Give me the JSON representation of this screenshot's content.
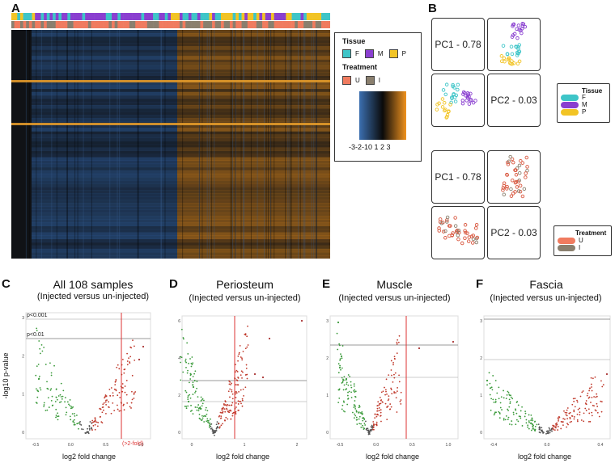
{
  "panels": {
    "A": "A",
    "B": "B",
    "C": "C",
    "D": "D",
    "E": "E",
    "F": "F"
  },
  "heatmap_legend": {
    "tissue_title": "Tissue",
    "tissue_items": [
      {
        "label": "F",
        "color": "#3ec5c8"
      },
      {
        "label": "M",
        "color": "#8a3fd0"
      },
      {
        "label": "P",
        "color": "#f2c425"
      }
    ],
    "treatment_title": "Treatment",
    "treatment_items": [
      {
        "label": "U",
        "color": "#f07b5f"
      },
      {
        "label": "I",
        "color": "#8a7f6e"
      }
    ],
    "scale_labels": "-3-2-10 1 2 3"
  },
  "pca": {
    "pc1_label": "PC1 - 0.78",
    "pc2_label": "PC2 - 0.03",
    "tissue_legend": {
      "title": "Tissue",
      "items": [
        {
          "label": "F",
          "color": "#3ec5c8"
        },
        {
          "label": "M",
          "color": "#8a3fd0"
        },
        {
          "label": "P",
          "color": "#f2c425"
        }
      ]
    },
    "treatment_legend": {
      "title": "Treatment",
      "items": [
        {
          "label": "U",
          "color": "#f07b5f"
        },
        {
          "label": "I",
          "color": "#8a7f6e"
        }
      ]
    }
  },
  "volcano": {
    "C": {
      "title": "All 108 samples",
      "subtitle": "(Injected versus un-injected)"
    },
    "D": {
      "title": "Periosteum",
      "subtitle": "(Injected versus un-injected)"
    },
    "E": {
      "title": "Muscle",
      "subtitle": "(Injected versus un-injected)"
    },
    "F": {
      "title": "Fascia",
      "subtitle": "(Injected versus un-injected)"
    },
    "xlabel": "log2 fold change",
    "ylabel": "-log10 p-value",
    "thresh_001": "p<0.001",
    "thresh_01": "p<0.01",
    "fold_note": "(>2-fold)",
    "c_ticks_x": [
      "-0.5",
      "0.0",
      "0.5",
      "1.0"
    ],
    "c_ticks_y": [
      "3",
      "2",
      "1",
      "0"
    ],
    "d_ticks_x": [
      "0",
      "1",
      "2"
    ],
    "d_ticks_y": [
      "6",
      "4",
      "2",
      "0"
    ],
    "e_ticks_x": [
      "-0.5",
      "0.0",
      "0.5",
      "1.0"
    ],
    "e_ticks_y": [
      "3",
      "2",
      "1",
      "0"
    ],
    "f_ticks_x": [
      "-0.4",
      "0.0",
      "0.4"
    ],
    "f_ticks_y": [
      "3",
      "2",
      "1",
      "0"
    ]
  },
  "colors": {
    "up": "#c0392b",
    "down": "#3a9a3a",
    "neutral": "#555555",
    "fold_line": "#d33",
    "heat_low": "#3b6fb0",
    "heat_mid": "#0a0a0a",
    "heat_high": "#f0921e"
  }
}
